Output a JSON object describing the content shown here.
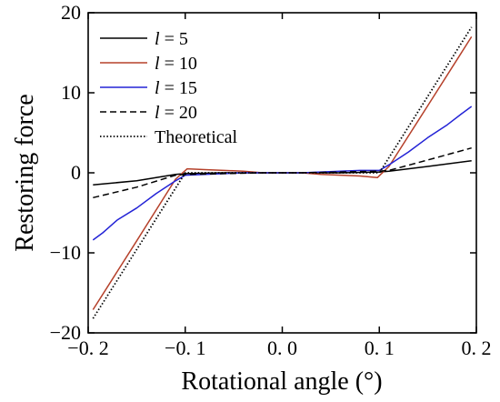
{
  "chart_data": {
    "type": "line",
    "xlabel": "Rotational angle (°)",
    "ylabel": "Restoring force",
    "xlim": [
      -0.2,
      0.2
    ],
    "ylim": [
      -20,
      20
    ],
    "xticks": [
      -0.2,
      -0.1,
      0.0,
      0.1,
      0.2
    ],
    "yticks": [
      -20,
      -10,
      0,
      10,
      20
    ],
    "xtick_labels": [
      "−0. 2",
      "−0. 1",
      "0. 0",
      "0. 1",
      "0. 2"
    ],
    "ytick_labels": [
      "−20",
      "−10",
      "0",
      "10",
      "20"
    ],
    "grid": false,
    "legend_position": "top-left",
    "series": [
      {
        "name": "l = 5",
        "name_var": "l",
        "name_rest": " = 5",
        "color": "#000000",
        "dash": "solid",
        "x": [
          -0.195,
          -0.15,
          -0.11,
          -0.1,
          -0.06,
          -0.02,
          0.0,
          0.02,
          0.06,
          0.1,
          0.11,
          0.15,
          0.195
        ],
        "y": [
          -1.5,
          -1.0,
          -0.2,
          -0.1,
          0.0,
          0.0,
          0.0,
          0.0,
          0.0,
          0.1,
          0.2,
          0.8,
          1.5
        ]
      },
      {
        "name": "l = 10",
        "name_var": "l",
        "name_rest": " = 10",
        "color": "#b5402a",
        "dash": "solid",
        "x": [
          -0.195,
          -0.15,
          -0.11,
          -0.098,
          -0.08,
          -0.06,
          -0.04,
          -0.02,
          0.0,
          0.02,
          0.04,
          0.06,
          0.08,
          0.098,
          0.11,
          0.15,
          0.195
        ],
        "y": [
          -17.1,
          -8.5,
          -0.8,
          0.5,
          0.4,
          0.3,
          0.2,
          0.0,
          0.0,
          0.0,
          -0.2,
          -0.3,
          -0.4,
          -0.6,
          0.8,
          8.4,
          17.0
        ]
      },
      {
        "name": "l = 15",
        "name_var": "l",
        "name_rest": " = 15",
        "color": "#2323d6",
        "dash": "solid",
        "x": [
          -0.195,
          -0.185,
          -0.17,
          -0.15,
          -0.13,
          -0.11,
          -0.1,
          -0.08,
          -0.06,
          -0.04,
          -0.02,
          0.0,
          0.02,
          0.04,
          0.06,
          0.08,
          0.1,
          0.11,
          0.13,
          0.15,
          0.17,
          0.185,
          0.195
        ],
        "y": [
          -8.4,
          -7.5,
          -5.9,
          -4.4,
          -2.6,
          -1.0,
          -0.3,
          -0.2,
          -0.1,
          0.0,
          0.0,
          0.0,
          0.0,
          0.1,
          0.2,
          0.3,
          0.3,
          1.0,
          2.6,
          4.4,
          6.0,
          7.4,
          8.3
        ]
      },
      {
        "name": "l = 20",
        "name_var": "l",
        "name_rest": " = 20",
        "color": "#000000",
        "dash": "dashed",
        "x": [
          -0.195,
          -0.15,
          -0.11,
          -0.1,
          -0.06,
          -0.02,
          0.0,
          0.02,
          0.06,
          0.1,
          0.11,
          0.15,
          0.195
        ],
        "y": [
          -3.1,
          -1.8,
          -0.3,
          -0.2,
          -0.1,
          0.0,
          0.0,
          0.0,
          0.1,
          0.2,
          0.3,
          1.6,
          3.1
        ]
      },
      {
        "name": "Theoretical",
        "color": "#000000",
        "dash": "dotted",
        "x": [
          -0.195,
          -0.1,
          0.1,
          0.195
        ],
        "y": [
          -18.2,
          0.0,
          0.0,
          18.2
        ]
      }
    ]
  }
}
